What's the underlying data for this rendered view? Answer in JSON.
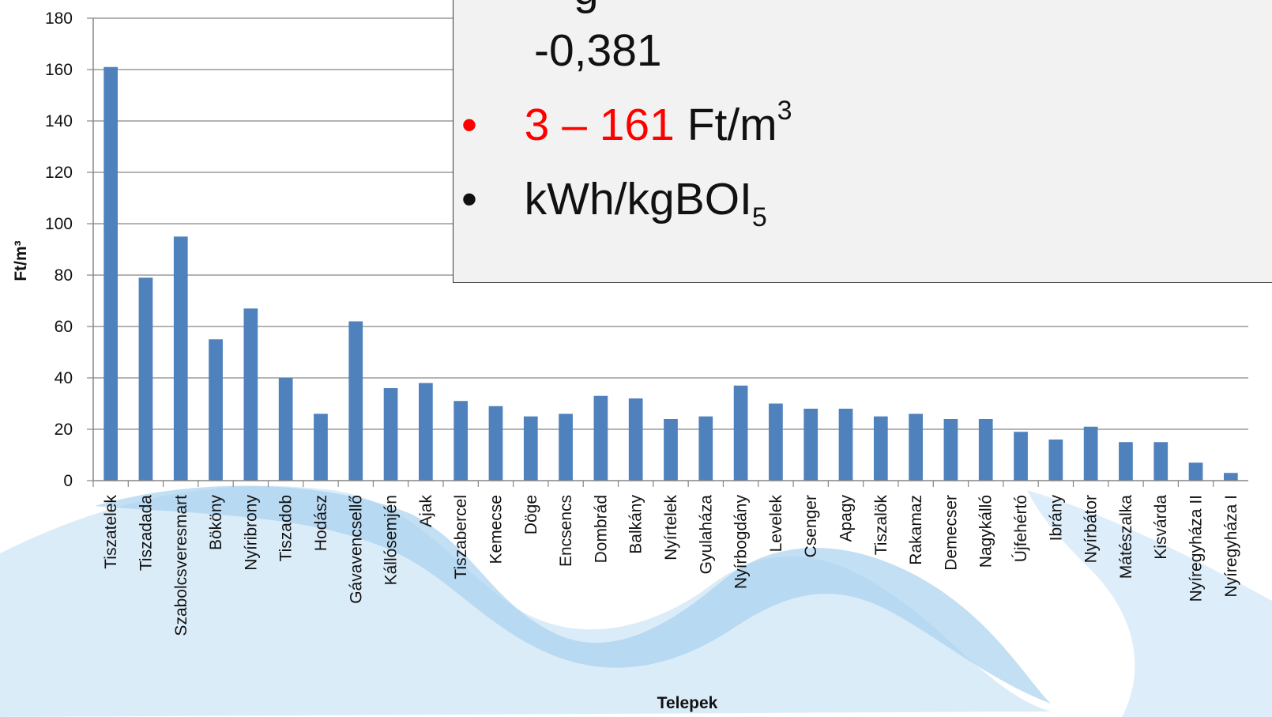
{
  "chart_data": {
    "type": "bar",
    "xlabel": "Telepek",
    "ylabel": "Ft/m³",
    "ylim": [
      0,
      180
    ],
    "yticks": [
      "0",
      "20",
      "40",
      "60",
      "80",
      "100",
      "120",
      "140",
      "160",
      "180"
    ],
    "grid": true,
    "bar_color": "#4f81bd",
    "categories": [
      "Tiszatelek",
      "Tiszadada",
      "Szabolcsveresmart",
      "Bököny",
      "Nyíribrony",
      "Tiszadob",
      "Hodász",
      "Gávavencsellő",
      "Kállósemjén",
      "Ajak",
      "Tiszabercel",
      "Kemecse",
      "Döge",
      "Encsencs",
      "Dombrád",
      "Balkány",
      "Nyírtelek",
      "Gyulaháza",
      "Nyírbogdány",
      "Levelek",
      "Csenger",
      "Apagy",
      "Tiszalök",
      "Rakamaz",
      "Demecser",
      "Nagykálló",
      "Újfehértó",
      "Ibrány",
      "Nyírbátor",
      "Mátészalka",
      "Kisvárda",
      "Nyíregyháza II",
      "Nyíregyháza I"
    ],
    "values": [
      161,
      79,
      95,
      55,
      67,
      40,
      26,
      62,
      36,
      38,
      31,
      29,
      25,
      26,
      33,
      32,
      24,
      25,
      37,
      30,
      28,
      28,
      25,
      26,
      24,
      24,
      19,
      16,
      21,
      15,
      15,
      7,
      3
    ]
  },
  "overlay": {
    "value": "-0,381",
    "range_text": "3 – 161",
    "range_unit": "Ft/m",
    "range_unit_sup": "3",
    "unit_line": "kWh/kgBOI",
    "unit_line_sub": "5",
    "bullet": "•",
    "colors": {
      "highlight": "#ff0000",
      "text": "#111111"
    }
  }
}
